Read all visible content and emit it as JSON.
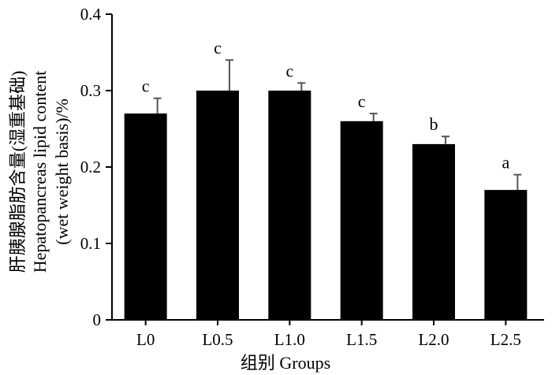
{
  "chart_data": {
    "type": "bar",
    "categories": [
      "L0",
      "L0.5",
      "L1.0",
      "L1.5",
      "L2.0",
      "L2.5"
    ],
    "series": [
      {
        "values": [
          0.27,
          0.3,
          0.3,
          0.26,
          0.23,
          0.17
        ],
        "errors": [
          0.02,
          0.04,
          0.01,
          0.01,
          0.01,
          0.02
        ],
        "significance": [
          "c",
          "c",
          "c",
          "c",
          "b",
          "a"
        ]
      }
    ],
    "ylim": [
      0,
      0.4
    ],
    "yticks": [
      "0",
      "0.1",
      "0.2",
      "0.3",
      "0.4"
    ],
    "ylabel_lines": [
      "肝胰腺脂肪含量(湿重基础)",
      "Hepatopancreas lipid content",
      "(wet weight basis)/%"
    ],
    "xlabel": "组别  Groups",
    "grid": false,
    "bar_color": "#000000",
    "error_color": "#000000"
  }
}
